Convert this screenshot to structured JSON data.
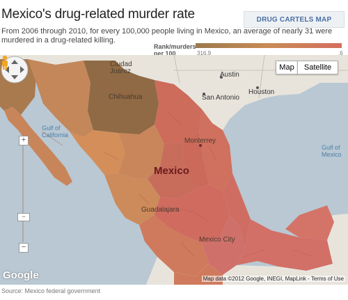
{
  "header": {
    "title": "Mexico's drug-related murder rate",
    "cartels_button": "DRUG CARTELS MAP",
    "description": "From 2006 through 2010, for every 100,000 people living in Mexico, an average of nearly 31 were murdered in a drug-related killing."
  },
  "legend": {
    "label_line1": "Rank/murders",
    "label_line2": "per 100",
    "min_value": "316.9",
    "max_value": ".6",
    "colors": [
      "#9b7a4e",
      "#c98b54",
      "#d46e5e"
    ]
  },
  "map": {
    "type_buttons": [
      "Map",
      "Satellite"
    ],
    "labels": {
      "ciudad_juarez": "Ciudad\nJuarez",
      "chihuahua": "Chihuahua",
      "austin": "Austin",
      "houston": "Houston",
      "san_antonio": "San Antonio",
      "monterrey": "Monterrey",
      "gulf_of_california": "Gulf of\nCalifornia",
      "gulf_of_mexico": "Gulf of\nMexico",
      "mexico": "Mexico",
      "guadalajara": "Guadalajara",
      "mexico_city": "Mexico City"
    },
    "google_logo": "Google",
    "attribution": "Map data ©2012 Google, INEGI, MapLink - Terms of Use",
    "zoom_in": "+",
    "zoom_out": "−",
    "zoom_handle": "−"
  },
  "source": "Source: Mexico federal government"
}
